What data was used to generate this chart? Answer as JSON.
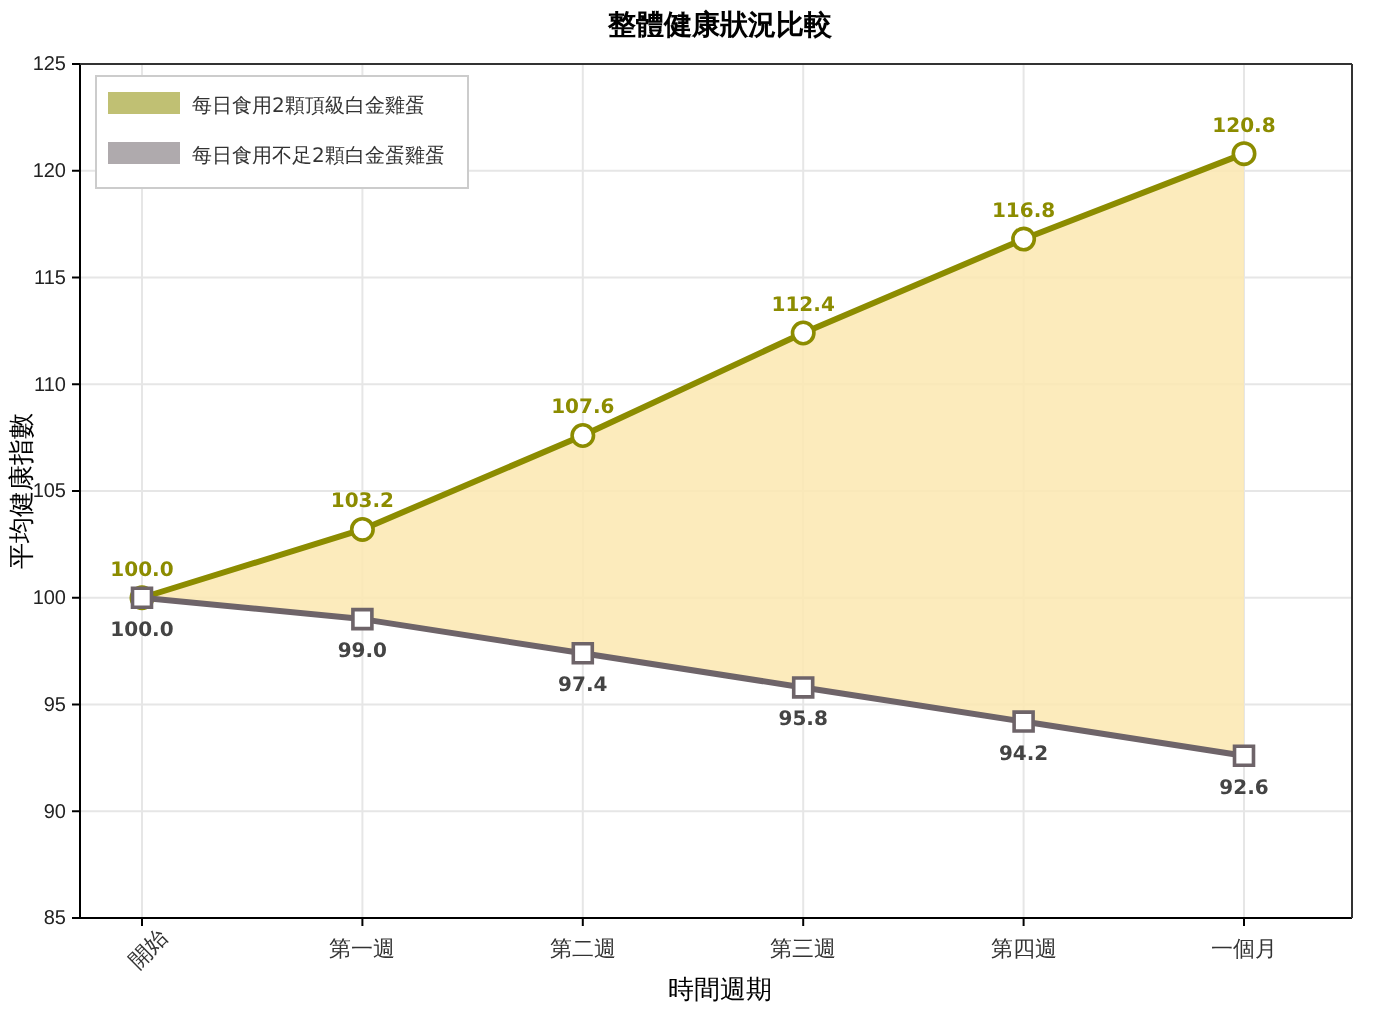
{
  "chart_data": {
    "type": "line",
    "title": "整體健康狀況比較",
    "xlabel": "時間週期",
    "ylabel": "平均健康指數",
    "categories": [
      "開始",
      "第一週",
      "第二週",
      "第三週",
      "第四週",
      "一個月"
    ],
    "ylim": [
      85,
      125
    ],
    "yticks": [
      85,
      90,
      95,
      100,
      105,
      110,
      115,
      120,
      125
    ],
    "grid": true,
    "legend": "top left",
    "series": [
      {
        "name": "每日食用2顆頂級白金雞蛋",
        "color": "#8c8c00",
        "marker": "circle",
        "values": [
          100,
          103.2,
          107.6,
          112.4,
          116.8,
          120.8
        ],
        "lower": [
          100,
          99,
          97.4,
          95.8,
          94.2,
          92.6
        ],
        "upper": [
          100,
          103.2,
          107.6,
          112.4,
          116.8,
          120.8
        ],
        "value_labels": [
          "100.0",
          "103.2",
          "107.6",
          "112.4",
          "116.8",
          "120.8"
        ]
      },
      {
        "name": "每日食用不足2顆白金蛋雞蛋",
        "color": "#6e6469",
        "marker": "square",
        "values": [
          100,
          99,
          97.4,
          95.8,
          94.2,
          92.6
        ],
        "value_labels": [
          "100.0",
          "99.0",
          "97.4",
          "95.8",
          "94.2",
          "92.6"
        ]
      }
    ]
  }
}
